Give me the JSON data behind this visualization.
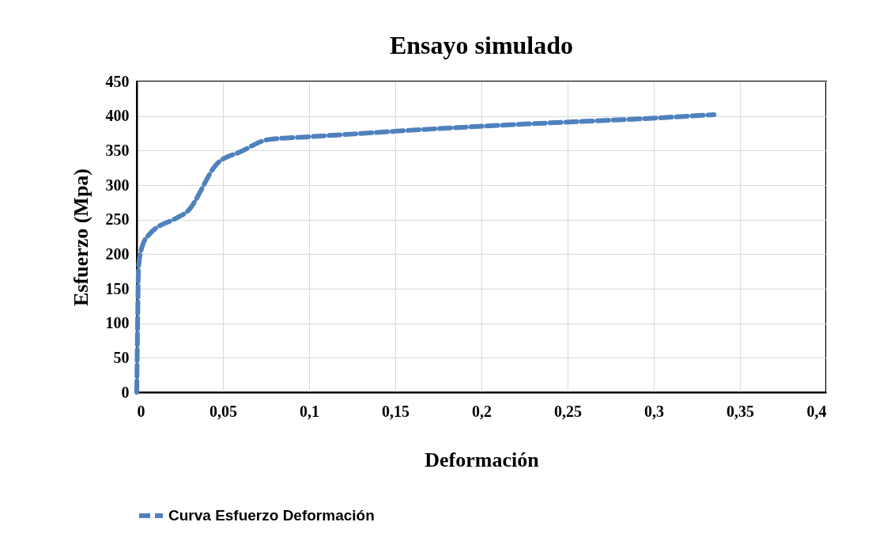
{
  "chart_data": {
    "type": "line",
    "title": "Ensayo simulado",
    "xlabel": "Deformación",
    "ylabel": "Esfuerzo  (Mpa)",
    "series": [
      {
        "name": "Curva Esfuerzo Deformación",
        "color": "#4f81bd",
        "x": [
          0,
          0.0005,
          0.001,
          0.003,
          0.0074,
          0.0228,
          0.029,
          0.047,
          0.06,
          0.0766,
          0.1,
          0.126,
          0.15,
          0.199,
          0.248,
          0.293,
          0.335
        ],
        "values": [
          0,
          100,
          180,
          210,
          229,
          252,
          261,
          332,
          348,
          366,
          370,
          374,
          378,
          385,
          391,
          396,
          402
        ]
      }
    ],
    "xlim": [
      0,
      0.4
    ],
    "xticks": [
      0,
      {
        "value": 0.05,
        "label": "0,05"
      },
      {
        "value": 0.1,
        "label": "0,1"
      },
      {
        "value": 0.15,
        "label": "0,15"
      },
      {
        "value": 0.2,
        "label": "0,2"
      },
      {
        "value": 0.25,
        "label": "0,25"
      },
      {
        "value": 0.3,
        "label": "0,3"
      },
      {
        "value": 0.35,
        "label": "0,35"
      },
      {
        "value": 0.4,
        "label": "0,4"
      }
    ],
    "ylim": [
      0,
      450
    ],
    "yticks": [
      0,
      50,
      100,
      150,
      200,
      250,
      300,
      350,
      400,
      450
    ],
    "grid": true,
    "legend": "bottom",
    "line_style": "dashed",
    "marker": "none"
  }
}
